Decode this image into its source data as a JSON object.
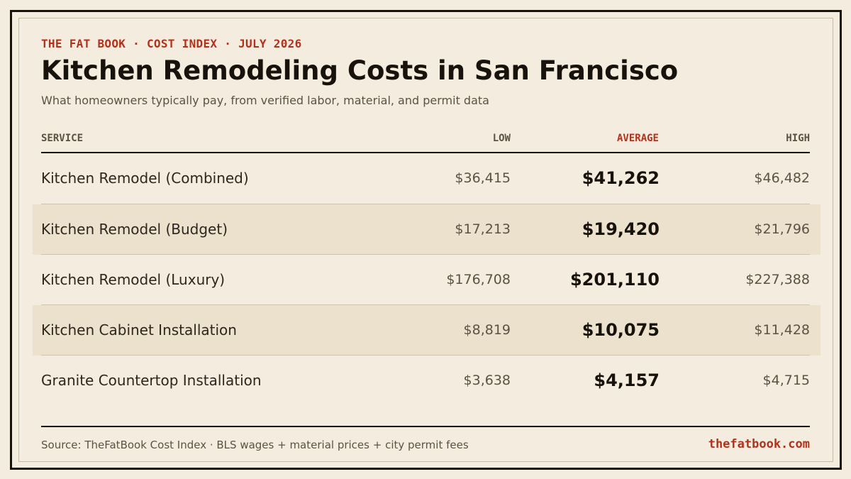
{
  "header": {
    "kicker": "THE FAT BOOK · COST INDEX · JULY 2026",
    "title": "Kitchen Remodeling Costs in San Francisco",
    "subtitle": "What homeowners typically pay, from verified labor, material, and permit data"
  },
  "table": {
    "columns": {
      "service": "SERVICE",
      "low": "LOW",
      "average": "AVERAGE",
      "high": "HIGH"
    },
    "rows": [
      {
        "service": "Kitchen Remodel (Combined)",
        "low": "$36,415",
        "average": "$41,262",
        "high": "$46,482"
      },
      {
        "service": "Kitchen Remodel (Budget)",
        "low": "$17,213",
        "average": "$19,420",
        "high": "$21,796"
      },
      {
        "service": "Kitchen Remodel (Luxury)",
        "low": "$176,708",
        "average": "$201,110",
        "high": "$227,388"
      },
      {
        "service": "Kitchen Cabinet Installation",
        "low": "$8,819",
        "average": "$10,075",
        "high": "$11,428"
      },
      {
        "service": "Granite Countertop Installation",
        "low": "$3,638",
        "average": "$4,157",
        "high": "$4,715"
      }
    ]
  },
  "footer": {
    "source": "Source: TheFatBook Cost Index · BLS wages + material prices + city permit fees",
    "site": "thefatbook.com"
  },
  "colors": {
    "background": "#f4ecde",
    "accent": "#b3311c",
    "ink": "#17120b",
    "row_shade": "#ece1cd"
  }
}
